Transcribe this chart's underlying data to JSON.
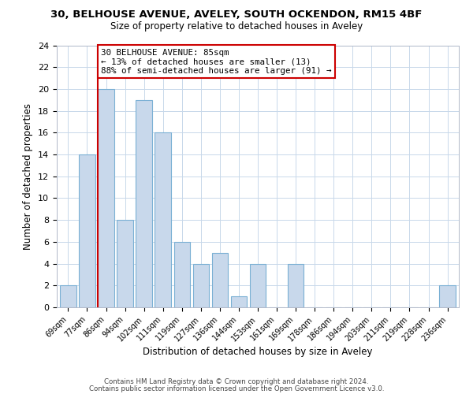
{
  "title": "30, BELHOUSE AVENUE, AVELEY, SOUTH OCKENDON, RM15 4BF",
  "subtitle": "Size of property relative to detached houses in Aveley",
  "xlabel": "Distribution of detached houses by size in Aveley",
  "ylabel": "Number of detached properties",
  "bar_labels": [
    "69sqm",
    "77sqm",
    "86sqm",
    "94sqm",
    "102sqm",
    "111sqm",
    "119sqm",
    "127sqm",
    "136sqm",
    "144sqm",
    "153sqm",
    "161sqm",
    "169sqm",
    "178sqm",
    "186sqm",
    "194sqm",
    "203sqm",
    "211sqm",
    "219sqm",
    "228sqm",
    "236sqm"
  ],
  "bar_values": [
    2,
    14,
    20,
    8,
    19,
    16,
    6,
    4,
    5,
    1,
    4,
    0,
    4,
    0,
    0,
    0,
    0,
    0,
    0,
    0,
    2
  ],
  "highlight_bar_index": 2,
  "bar_color": "#c8d8eb",
  "bar_edge_color": "#7ab0d4",
  "highlight_edge_color": "#cc0000",
  "annotation_text": "30 BELHOUSE AVENUE: 85sqm\n← 13% of detached houses are smaller (13)\n88% of semi-detached houses are larger (91) →",
  "annotation_box_edge": "#cc0000",
  "ylim": [
    0,
    24
  ],
  "yticks": [
    0,
    2,
    4,
    6,
    8,
    10,
    12,
    14,
    16,
    18,
    20,
    22,
    24
  ],
  "footer1": "Contains HM Land Registry data © Crown copyright and database right 2024.",
  "footer2": "Contains public sector information licensed under the Open Government Licence v3.0.",
  "fig_width": 6.0,
  "fig_height": 5.0,
  "background_color": "#ffffff",
  "title_fontsize": 9.5,
  "subtitle_fontsize": 8.5
}
